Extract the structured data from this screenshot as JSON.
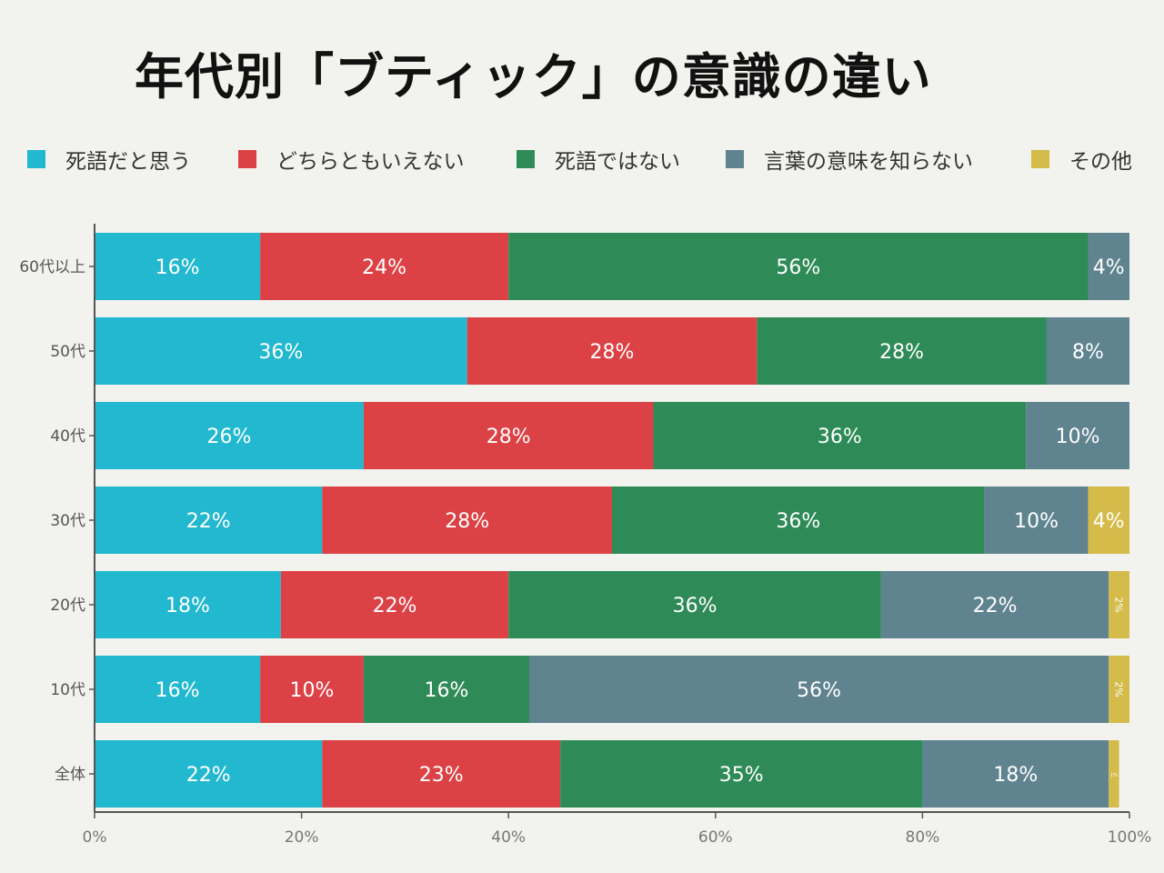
{
  "title": "年代別「ブティック」の意識の違い",
  "chart_data": {
    "type": "bar",
    "orientation": "horizontal",
    "stacked": true,
    "title": "年代別「ブティック」の意識の違い",
    "categories": [
      "60代以上",
      "50代",
      "40代",
      "30代",
      "20代",
      "10代",
      "全体"
    ],
    "series": [
      {
        "name": "死語だと思う",
        "color": "#22b8cf",
        "values": [
          16,
          36,
          26,
          22,
          18,
          16,
          22
        ]
      },
      {
        "name": "どちらともいえない",
        "color": "#dc4245",
        "values": [
          24,
          28,
          28,
          28,
          22,
          10,
          23
        ]
      },
      {
        "name": "死語ではない",
        "color": "#2e8b57",
        "values": [
          56,
          28,
          36,
          36,
          36,
          16,
          35
        ]
      },
      {
        "name": "言葉の意味を知らない",
        "color": "#5f838f",
        "values": [
          4,
          8,
          10,
          10,
          22,
          56,
          18
        ]
      },
      {
        "name": "その他",
        "color": "#d4bb4a",
        "values": [
          0,
          0,
          0,
          4,
          2,
          2,
          1
        ]
      }
    ],
    "xlim": [
      0,
      100
    ],
    "xticks": [
      "0%",
      "20%",
      "40%",
      "60%",
      "80%",
      "100%"
    ],
    "unit": "%",
    "grid": false,
    "legend": "top"
  }
}
